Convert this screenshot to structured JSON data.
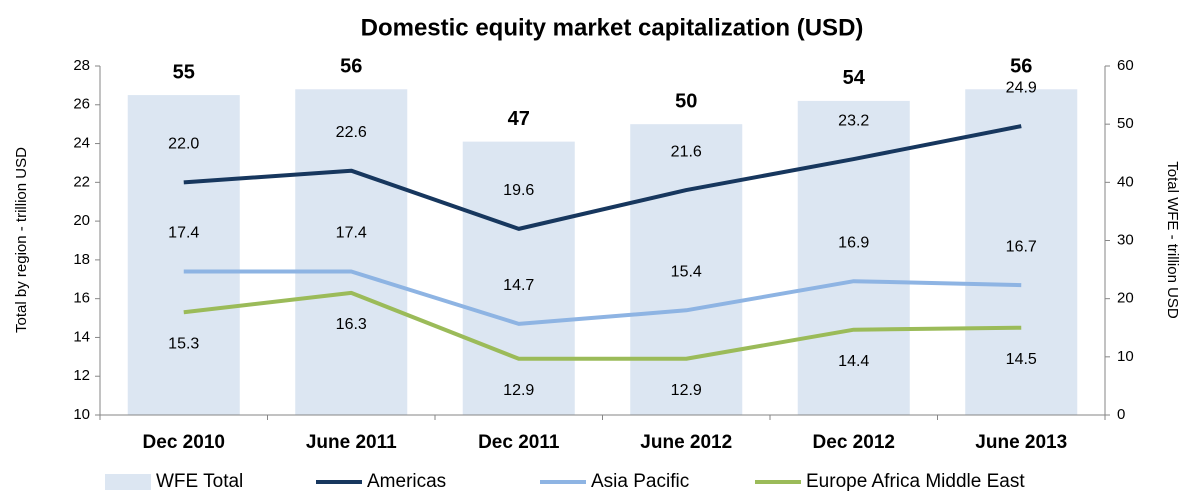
{
  "chart_data": {
    "type": "combo",
    "title": "Domestic equity market capitalization (USD)",
    "ylabel": "Total by region - trillion USD",
    "y2label": "Total WFE - trillion USD",
    "categories": [
      "Dec 2010",
      "June 2011",
      "Dec 2011",
      "June 2012",
      "Dec 2012",
      "June 2013"
    ],
    "ylim": [
      10,
      28
    ],
    "yticks": [
      10,
      12,
      14,
      16,
      18,
      20,
      22,
      24,
      26,
      28
    ],
    "y2lim": [
      0,
      60
    ],
    "y2ticks": [
      0,
      10,
      20,
      30,
      40,
      50,
      60
    ],
    "legend": "bottom",
    "series": [
      {
        "name": "WFE Total",
        "type": "bar",
        "axis": "y2",
        "color": "#dce6f2",
        "values": [
          55,
          56,
          47,
          50,
          54,
          56
        ]
      },
      {
        "name": "Americas",
        "type": "line",
        "color": "#17375e",
        "values": [
          22.0,
          22.6,
          19.6,
          21.6,
          23.2,
          24.9
        ],
        "value_labels": [
          "22.0",
          "22.6",
          "19.6",
          "21.6",
          "23.2",
          "24.9"
        ],
        "label_position": "above"
      },
      {
        "name": "Asia Pacific",
        "type": "line",
        "color": "#8eb4e3",
        "values": [
          17.4,
          17.4,
          14.7,
          15.4,
          16.9,
          16.7
        ],
        "value_labels": [
          "17.4",
          "17.4",
          "14.7",
          "15.4",
          "16.9",
          "16.7"
        ],
        "label_position": "above"
      },
      {
        "name": "Europe Africa Middle East",
        "type": "line",
        "color": "#9bbb59",
        "values": [
          15.3,
          16.3,
          12.9,
          12.9,
          14.4,
          14.5
        ],
        "value_labels": [
          "15.3",
          "16.3",
          "12.9",
          "12.9",
          "14.4",
          "14.5"
        ],
        "label_position": "below"
      }
    ]
  }
}
